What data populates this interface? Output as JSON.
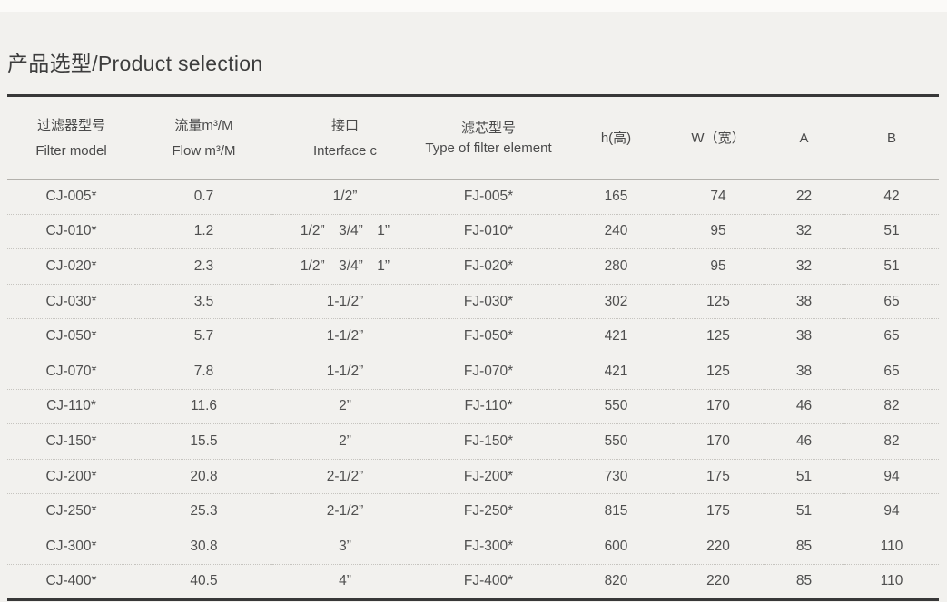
{
  "page": {
    "title": "产品选型/Product selection"
  },
  "colors": {
    "background": "#f2f1ee",
    "text": "#4a4a4a",
    "rule": "#383838",
    "header_divider": "#b3b1ac",
    "row_divider_dotted": "#c6c4bf"
  },
  "table": {
    "headers": [
      {
        "line1": "过滤器型号",
        "line2": "Filter model"
      },
      {
        "line1": "流量m³/M",
        "line2": "Flow m³/M"
      },
      {
        "line1": "接口",
        "line2": "Interface c"
      },
      {
        "line1": "滤芯型号",
        "line2": "Type of filter element"
      },
      {
        "line1": "h(高)",
        "line2": ""
      },
      {
        "line1": "W（宽）",
        "line2": ""
      },
      {
        "line1": "A",
        "line2": ""
      },
      {
        "line1": "B",
        "line2": ""
      }
    ],
    "rows": [
      [
        "CJ-005*",
        "0.7",
        "1/2”",
        "FJ-005*",
        "165",
        "74",
        "22",
        "42"
      ],
      [
        "CJ-010*",
        "1.2",
        "1/2” 3/4” 1”",
        "FJ-010*",
        "240",
        "95",
        "32",
        "51"
      ],
      [
        "CJ-020*",
        "2.3",
        "1/2” 3/4” 1”",
        "FJ-020*",
        "280",
        "95",
        "32",
        "51"
      ],
      [
        "CJ-030*",
        "3.5",
        "1-1/2”",
        "FJ-030*",
        "302",
        "125",
        "38",
        "65"
      ],
      [
        "CJ-050*",
        "5.7",
        "1-1/2”",
        "FJ-050*",
        "421",
        "125",
        "38",
        "65"
      ],
      [
        "CJ-070*",
        "7.8",
        "1-1/2”",
        "FJ-070*",
        "421",
        "125",
        "38",
        "65"
      ],
      [
        "CJ-110*",
        "11.6",
        "2”",
        "FJ-110*",
        "550",
        "170",
        "46",
        "82"
      ],
      [
        "CJ-150*",
        "15.5",
        "2”",
        "FJ-150*",
        "550",
        "170",
        "46",
        "82"
      ],
      [
        "CJ-200*",
        "20.8",
        "2-1/2”",
        "FJ-200*",
        "730",
        "175",
        "51",
        "94"
      ],
      [
        "CJ-250*",
        "25.3",
        "2-1/2”",
        "FJ-250*",
        "815",
        "175",
        "51",
        "94"
      ],
      [
        "CJ-300*",
        "30.8",
        "3”",
        "FJ-300*",
        "600",
        "220",
        "85",
        "110"
      ],
      [
        "CJ-400*",
        "40.5",
        "4”",
        "FJ-400*",
        "820",
        "220",
        "85",
        "110"
      ]
    ]
  }
}
